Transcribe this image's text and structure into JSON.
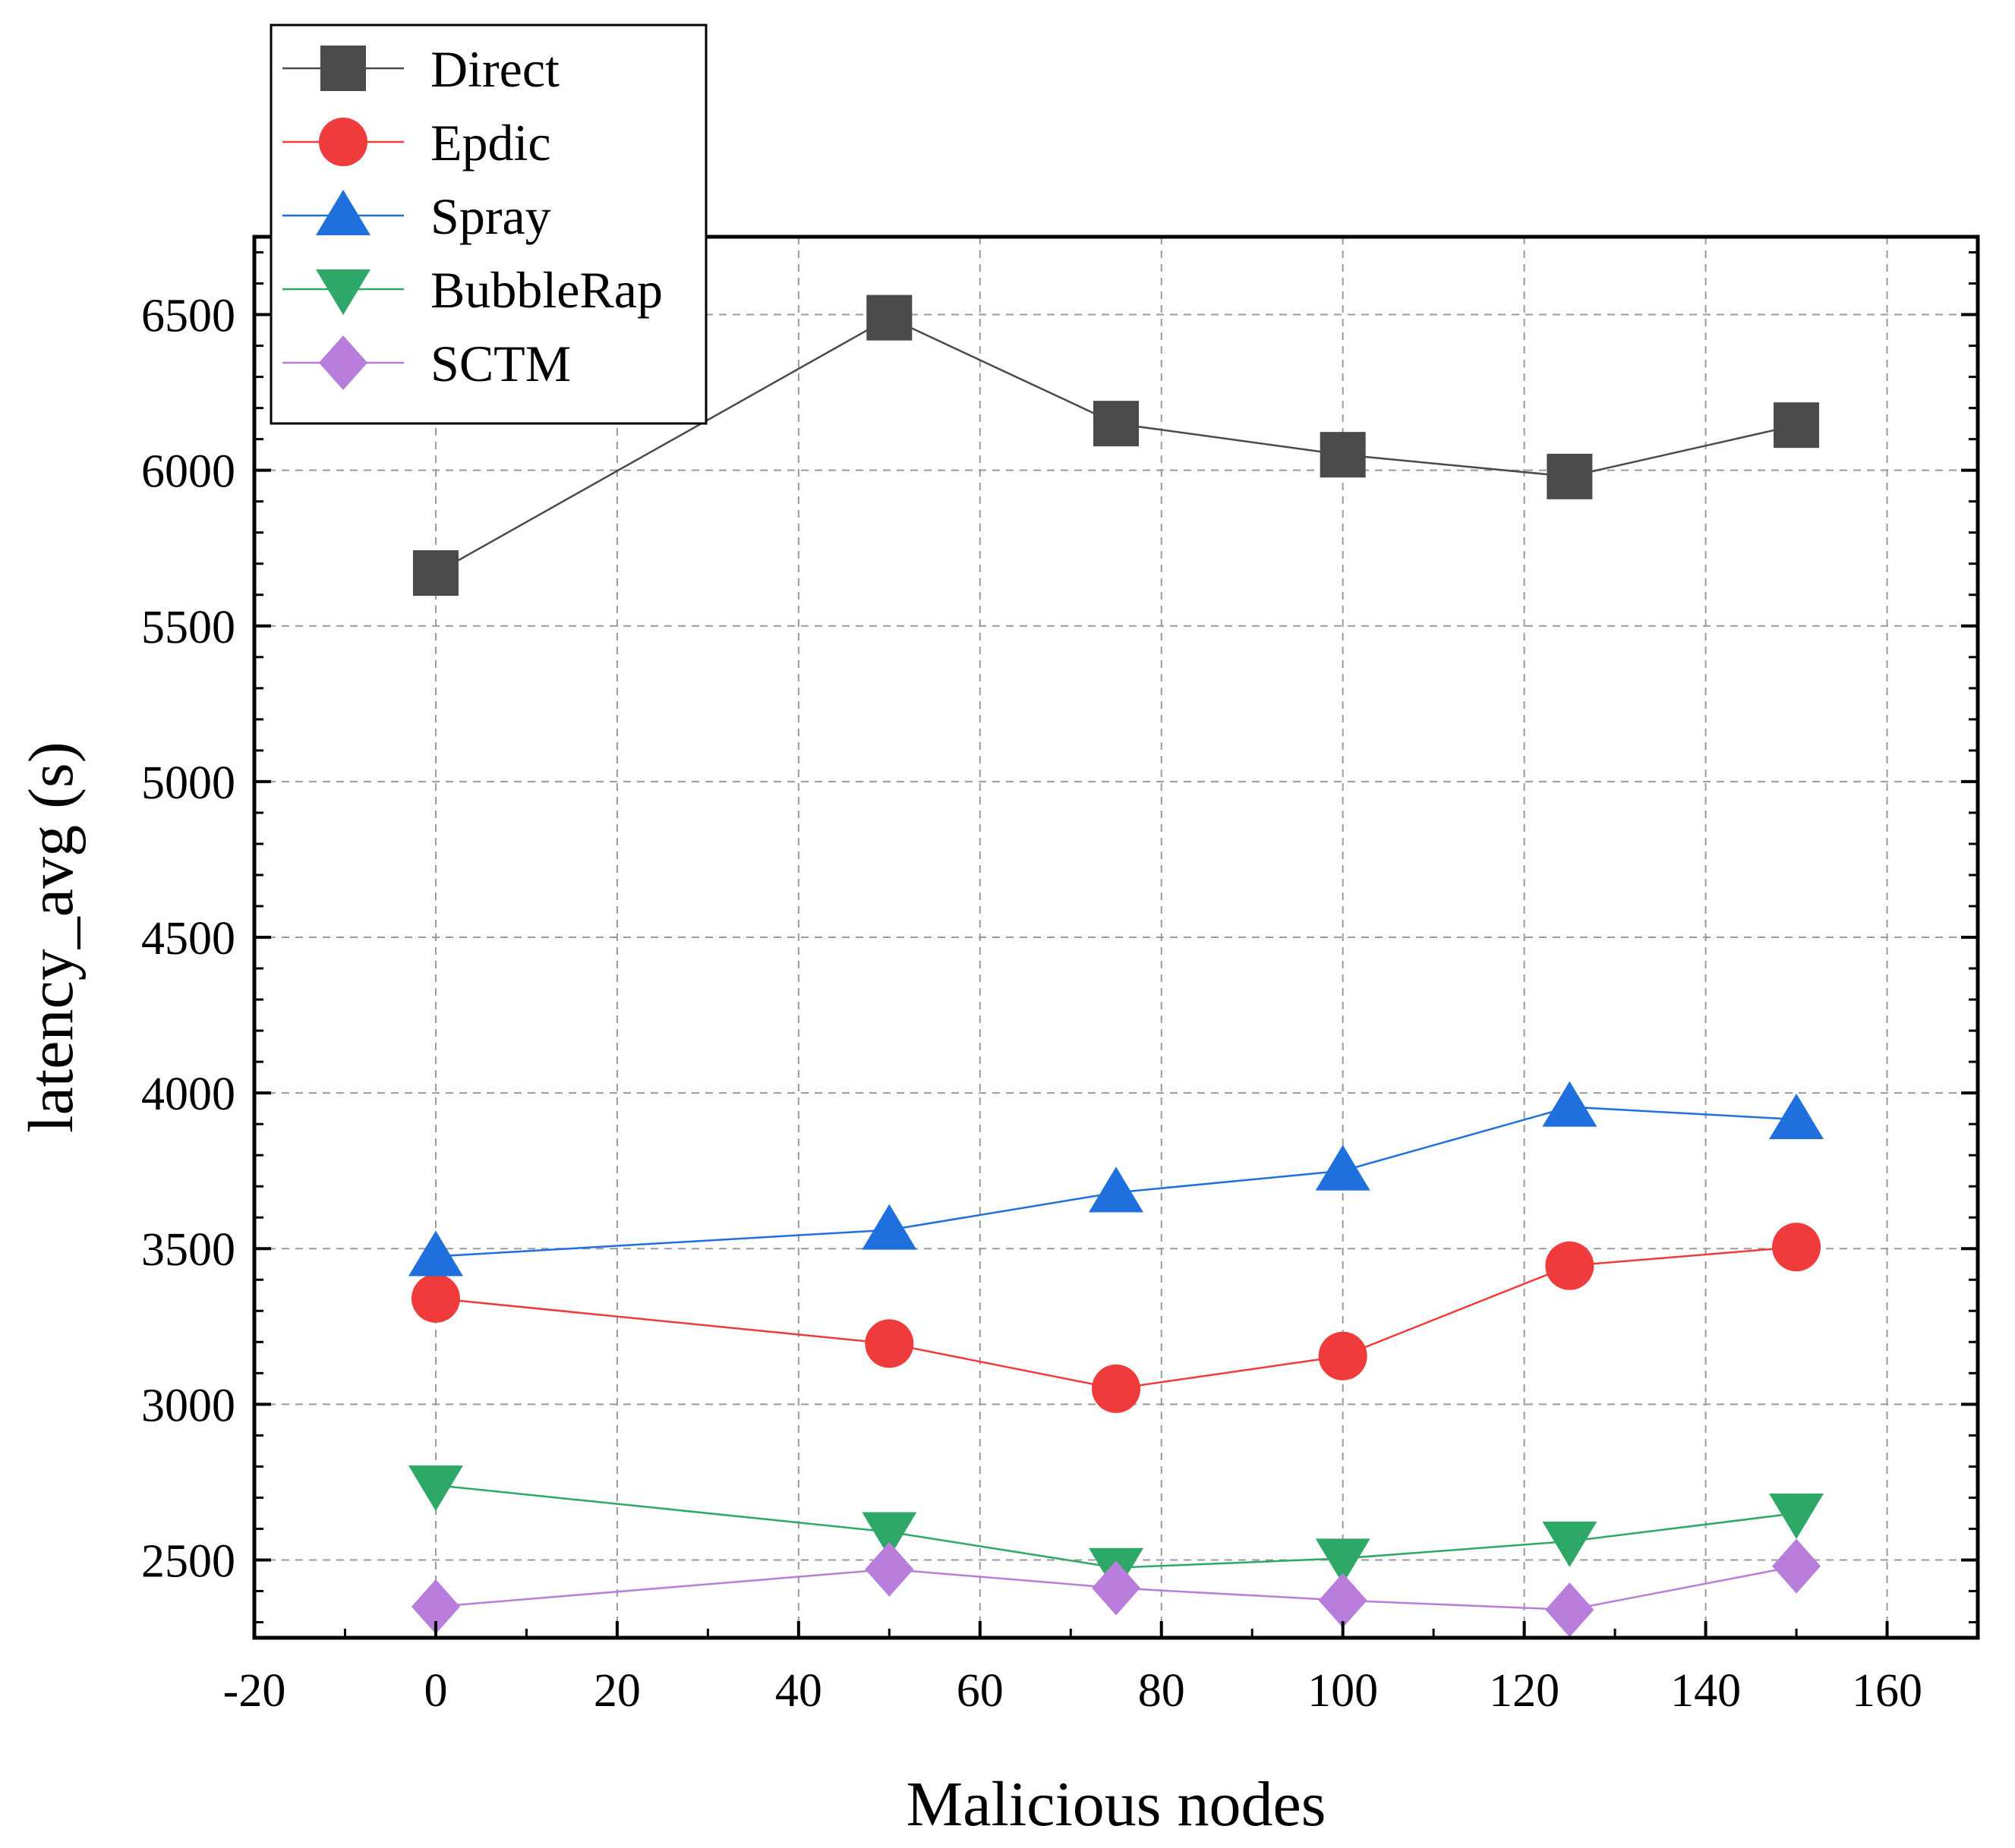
{
  "chart_data": {
    "type": "line",
    "title": "",
    "xlabel": "Malicious nodes",
    "ylabel": "latency_avg (s)",
    "xlim": [
      -20,
      170
    ],
    "ylim": [
      2250,
      6750
    ],
    "x_ticks": [
      -20,
      0,
      20,
      40,
      60,
      80,
      100,
      120,
      140,
      160
    ],
    "x_tick_labels": [
      "-20",
      "0",
      "20",
      "40",
      "60",
      "80",
      "100",
      "120",
      "140",
      "160"
    ],
    "y_ticks": [
      2500,
      3000,
      3500,
      4000,
      4500,
      5000,
      5500,
      6000,
      6500
    ],
    "y_tick_labels": [
      "2500",
      "3000",
      "3500",
      "4000",
      "4500",
      "5000",
      "5500",
      "6000",
      "6500"
    ],
    "grid": true,
    "legend_position": "top-left",
    "x": [
      0,
      50,
      75,
      100,
      125,
      150
    ],
    "series": [
      {
        "name": "Direct",
        "color": "#4a4a4a",
        "marker": "square",
        "values": [
          5670,
          6490,
          6150,
          6050,
          5980,
          6145
        ]
      },
      {
        "name": "Epdic",
        "color": "#ef3b3b",
        "marker": "circle",
        "values": [
          3340,
          3195,
          3050,
          3155,
          3445,
          3505
        ]
      },
      {
        "name": "Spray",
        "color": "#1f6fdc",
        "marker": "triangle-up",
        "values": [
          3475,
          3560,
          3680,
          3750,
          3955,
          3915
        ]
      },
      {
        "name": "BubbleRap",
        "color": "#2ea867",
        "marker": "triangle-down",
        "values": [
          2740,
          2590,
          2475,
          2505,
          2560,
          2650
        ]
      },
      {
        "name": "SCTM",
        "color": "#b97ddc",
        "marker": "diamond",
        "values": [
          2350,
          2470,
          2410,
          2370,
          2340,
          2480
        ]
      }
    ]
  }
}
